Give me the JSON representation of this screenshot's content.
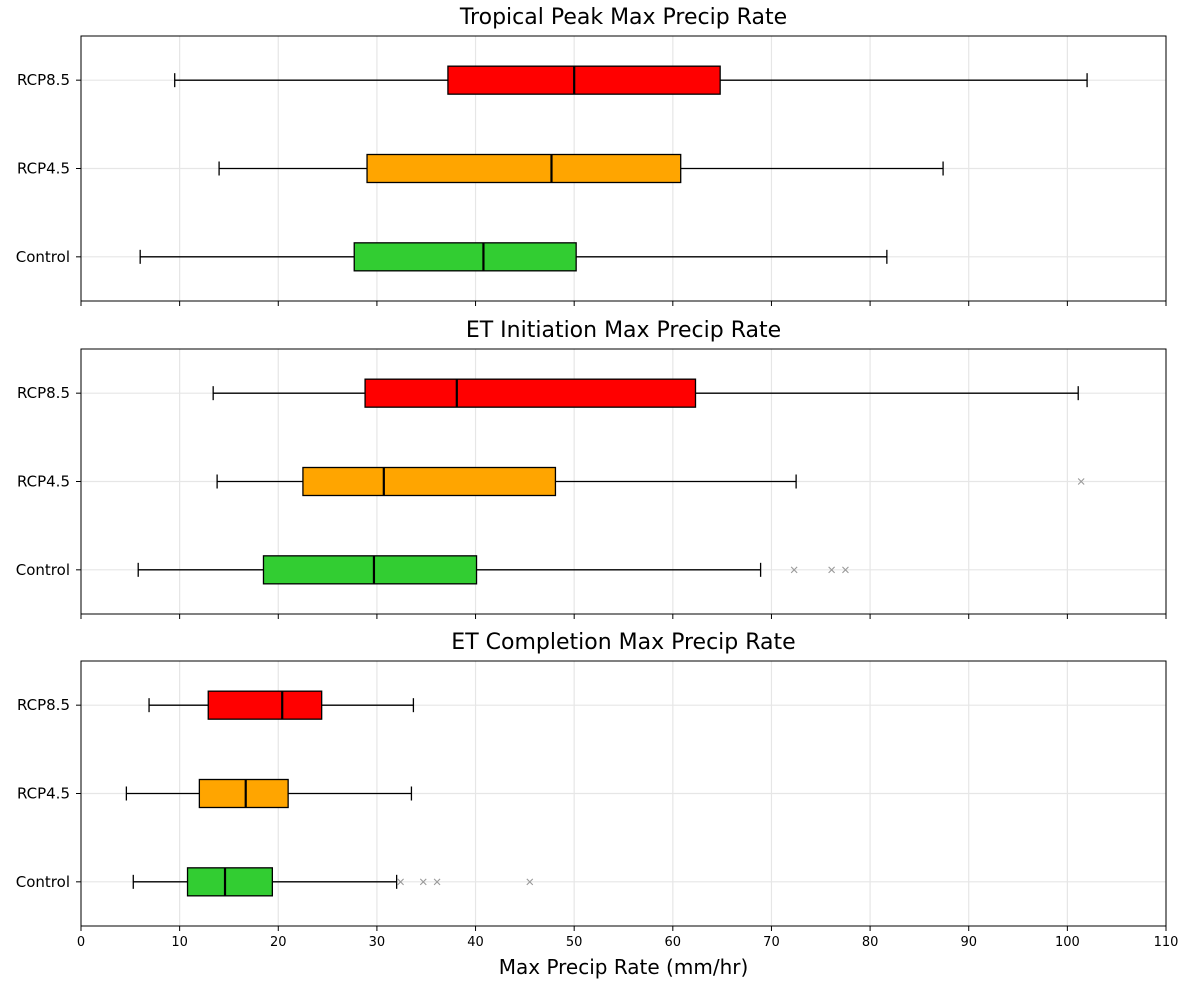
{
  "chart_data": {
    "type": "boxplot",
    "orientation": "horizontal",
    "shared_x": true,
    "xlabel": "Max Precip Rate (mm/hr)",
    "xlim": [
      0,
      110
    ],
    "xticks": [
      "0",
      "10",
      "20",
      "30",
      "40",
      "50",
      "60",
      "70",
      "80",
      "90",
      "100",
      "110"
    ],
    "grid": true,
    "categories": [
      "Control",
      "RCP4.5",
      "RCP8.5"
    ],
    "colors": {
      "Control": "#32cd32",
      "RCP4.5": "#ffa500",
      "RCP8.5": "#ff0000"
    },
    "panels": [
      {
        "title": "Tropical Peak Max Precip Rate",
        "boxes": [
          {
            "category": "Control",
            "whisker_low": 6,
            "q1": 27.7,
            "median": 40.8,
            "q3": 50.2,
            "whisker_high": 81.7,
            "outliers": []
          },
          {
            "category": "RCP4.5",
            "whisker_low": 14,
            "q1": 29,
            "median": 47.7,
            "q3": 60.8,
            "whisker_high": 87.4,
            "outliers": []
          },
          {
            "category": "RCP8.5",
            "whisker_low": 9.5,
            "q1": 37.2,
            "median": 50,
            "q3": 64.8,
            "whisker_high": 102,
            "outliers": []
          }
        ]
      },
      {
        "title": "ET Initiation Max Precip Rate",
        "boxes": [
          {
            "category": "Control",
            "whisker_low": 5.8,
            "q1": 18.5,
            "median": 29.7,
            "q3": 40.1,
            "whisker_high": 68.9,
            "outliers": [
              72.3,
              76.1,
              77.5
            ]
          },
          {
            "category": "RCP4.5",
            "whisker_low": 13.8,
            "q1": 22.5,
            "median": 30.7,
            "q3": 48.1,
            "whisker_high": 72.5,
            "outliers": [
              101.4
            ]
          },
          {
            "category": "RCP8.5",
            "whisker_low": 13.4,
            "q1": 28.8,
            "median": 38.1,
            "q3": 62.3,
            "whisker_high": 101.1,
            "outliers": []
          }
        ]
      },
      {
        "title": "ET Completion Max Precip Rate",
        "boxes": [
          {
            "category": "Control",
            "whisker_low": 5.3,
            "q1": 10.8,
            "median": 14.6,
            "q3": 19.4,
            "whisker_high": 32,
            "outliers": [
              32.4,
              34.7,
              36.1,
              45.5
            ]
          },
          {
            "category": "RCP4.5",
            "whisker_low": 4.6,
            "q1": 12,
            "median": 16.7,
            "q3": 21,
            "whisker_high": 33.5,
            "outliers": []
          },
          {
            "category": "RCP8.5",
            "whisker_low": 6.9,
            "q1": 12.9,
            "median": 20.4,
            "q3": 24.4,
            "whisker_high": 33.7,
            "outliers": []
          }
        ]
      }
    ]
  }
}
